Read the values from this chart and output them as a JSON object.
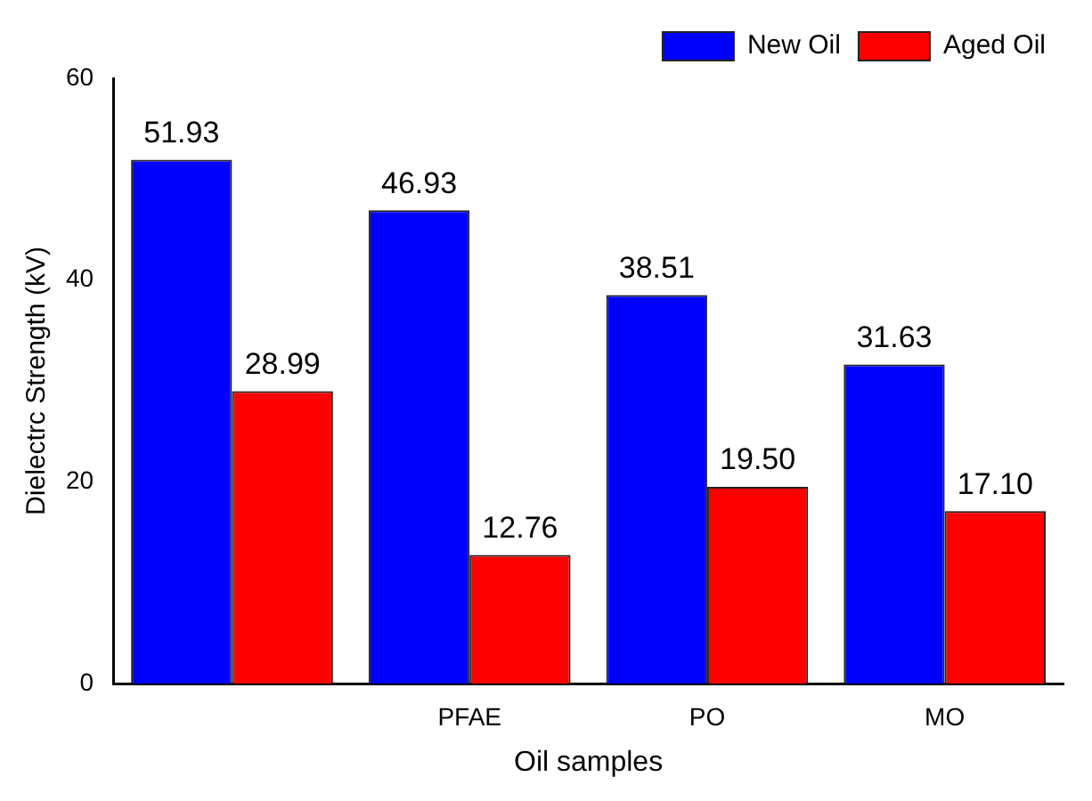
{
  "chart_data": {
    "type": "bar",
    "xlabel": "Oil samples",
    "ylabel": "Dielectrc Strength (kV)",
    "categories": [
      null,
      "PFAE",
      "PO",
      "MO"
    ],
    "series": [
      {
        "name": "New Oil",
        "color": "#0000ff",
        "values": [
          51.93,
          46.93,
          38.51,
          31.63
        ],
        "value_labels": [
          "51.93",
          "46.93",
          "38.51",
          "31.63"
        ]
      },
      {
        "name": "Aged Oil",
        "color": "#ff0000",
        "values": [
          28.99,
          12.76,
          19.5,
          17.1
        ],
        "value_labels": [
          "28.99",
          "12.76",
          "19.50",
          "17.10"
        ]
      }
    ],
    "ylim": [
      0,
      60
    ],
    "yticks": [
      0,
      20,
      40,
      60
    ],
    "grid": false,
    "legend": "top right"
  }
}
